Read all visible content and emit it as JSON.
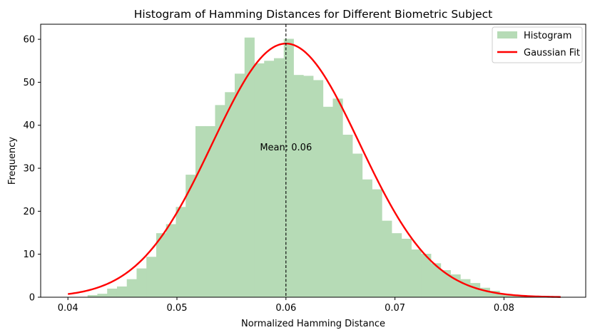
{
  "chart_data": {
    "type": "bar",
    "title": "Histogram of Hamming Distances for Different Biometric Subject",
    "xlabel": "Normalized Hamming Distance",
    "ylabel": "Frequency",
    "xlim": [
      0.0375,
      0.0875
    ],
    "ylim": [
      0,
      63.5
    ],
    "xticks": [
      0.04,
      0.05,
      0.06,
      0.07,
      0.08
    ],
    "xtick_labels": [
      "0.04",
      "0.05",
      "0.06",
      "0.07",
      "0.08"
    ],
    "yticks": [
      0,
      10,
      20,
      30,
      40,
      50,
      60
    ],
    "ytick_labels": [
      "0",
      "10",
      "20",
      "30",
      "40",
      "50",
      "60"
    ],
    "grid": false,
    "legend_position": "top-right",
    "histogram": {
      "name": "Histogram",
      "color": "#b6dbb6",
      "bin_start": 0.04,
      "bin_width": 0.0009,
      "values": [
        0,
        0,
        0.5,
        0.8,
        2.0,
        2.5,
        4.2,
        6.7,
        9.4,
        14.9,
        17.0,
        21.0,
        28.5,
        39.8,
        39.8,
        44.7,
        47.7,
        52.0,
        60.4,
        54.4,
        55.0,
        55.6,
        60.1,
        51.7,
        51.5,
        50.5,
        44.3,
        46.2,
        37.8,
        33.4,
        27.4,
        25.1,
        17.8,
        14.9,
        13.6,
        11.1,
        10.1,
        7.9,
        6.3,
        5.3,
        4.2,
        3.3,
        2.2,
        1.5,
        0.7,
        0.4,
        0.2,
        0.1,
        0.05,
        0
      ]
    },
    "gaussian_fit": {
      "name": "Gaussian Fit",
      "color": "#ff0000",
      "mean": 0.06,
      "sigma": 0.00675,
      "peak": 59.0,
      "x_range": [
        0.04,
        0.0852
      ]
    },
    "mean_line": {
      "x": 0.06,
      "color": "#000000",
      "label": "Mean: 0.06",
      "label_y": 35
    }
  }
}
